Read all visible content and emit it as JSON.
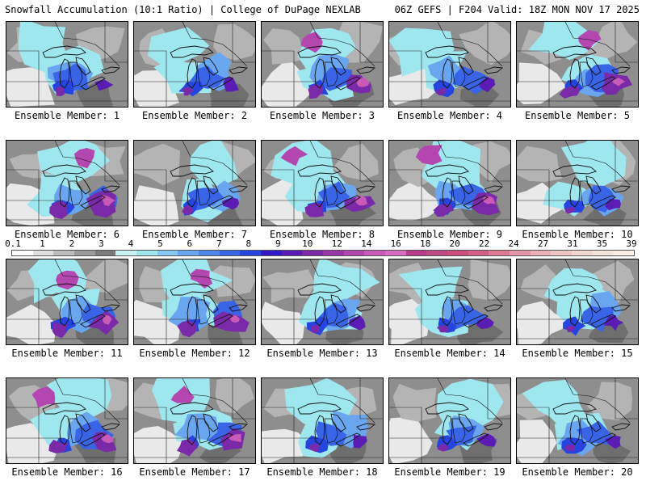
{
  "header": {
    "title_left": "Snowfall Accumulation (10:1 Ratio) | College of DuPage NEXLAB",
    "title_right": "06Z GEFS | F204 Valid: 18Z MON NOV 17 2025"
  },
  "legend": {
    "labels": [
      "0.1",
      "1",
      "2",
      "3",
      "4",
      "5",
      "6",
      "7",
      "8",
      "9",
      "10",
      "12",
      "14",
      "16",
      "18",
      "20",
      "22",
      "24",
      "27",
      "31",
      "35",
      "39"
    ],
    "colors": [
      "#ffffff",
      "#e0e0e0",
      "#bdbdbd",
      "#9b9b9b",
      "#7a7a7a",
      "#c9f4f4",
      "#9fe7ef",
      "#86c6f2",
      "#6aa6ef",
      "#4f86ea",
      "#3a64e6",
      "#2644e0",
      "#3218c8",
      "#5a1cb4",
      "#7a2aa8",
      "#9936a8",
      "#b446b0",
      "#c95ab8",
      "#d86cbe",
      "#b83a88",
      "#c04a86",
      "#cc4c7c",
      "#d65f86",
      "#df7a95",
      "#e596a8",
      "#eab0b8",
      "#eec6c4",
      "#f2d8d0",
      "#f5e6dc",
      "#f9efe6"
    ]
  },
  "panels": [
    {
      "label": "Ensemble Member: 1"
    },
    {
      "label": "Ensemble Member: 2"
    },
    {
      "label": "Ensemble Member: 3"
    },
    {
      "label": "Ensemble Member: 4"
    },
    {
      "label": "Ensemble Member: 5"
    },
    {
      "label": "Ensemble Member: 6"
    },
    {
      "label": "Ensemble Member: 7"
    },
    {
      "label": "Ensemble Member: 8"
    },
    {
      "label": "Ensemble Member: 9"
    },
    {
      "label": "Ensemble Member: 10"
    },
    {
      "label": "Ensemble Member: 11"
    },
    {
      "label": "Ensemble Member: 12"
    },
    {
      "label": "Ensemble Member: 13"
    },
    {
      "label": "Ensemble Member: 14"
    },
    {
      "label": "Ensemble Member: 15"
    },
    {
      "label": "Ensemble Member: 16"
    },
    {
      "label": "Ensemble Member: 17"
    },
    {
      "label": "Ensemble Member: 18"
    },
    {
      "label": "Ensemble Member: 19"
    },
    {
      "label": "Ensemble Member: 20"
    }
  ]
}
